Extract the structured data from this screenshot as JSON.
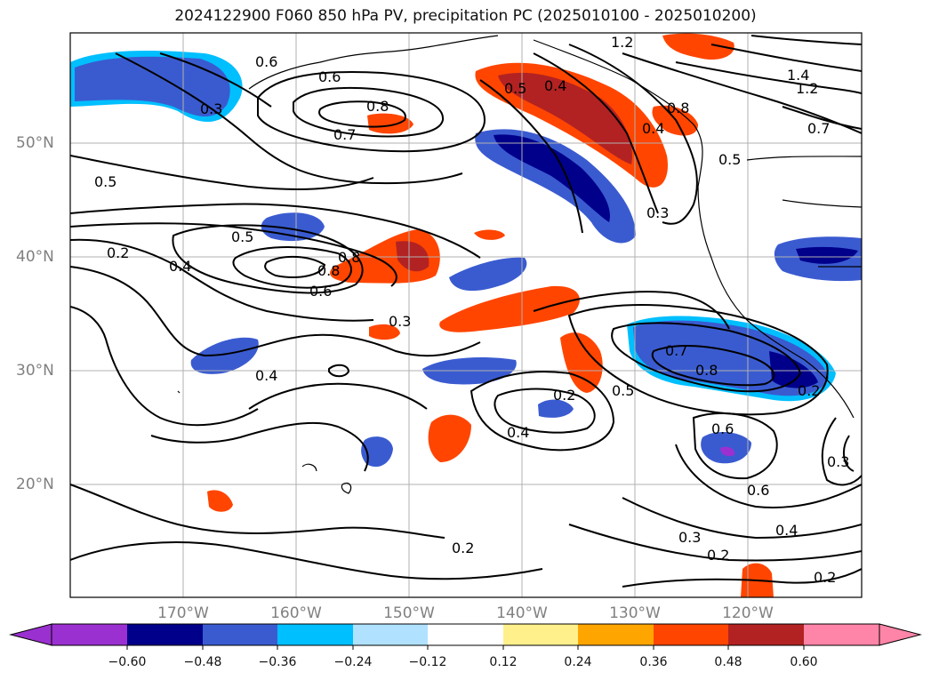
{
  "title": "2024122900 F060 850 hPa PV, precipitation PC (2025010100 - 2025010200)",
  "map": {
    "lat_labels": [
      "50°N",
      "40°N",
      "30°N",
      "20°N"
    ],
    "lon_labels": [
      "170°W",
      "160°W",
      "150°W",
      "140°W",
      "130°W",
      "120°W"
    ],
    "contour_labels": [
      "0.6",
      "0.6",
      "0.3",
      "0.8",
      "0.7",
      "0.5",
      "0.4",
      "1.2",
      "1.4",
      "1.2",
      "0.7",
      "0.8",
      "0.4",
      "0.5",
      "0.3",
      "0.5",
      "0.5",
      "0.2",
      "0.4",
      "0.8",
      "0.8",
      "0.6",
      "0.3",
      "0.4",
      "0.2",
      "0.5",
      "0.4",
      "0.7",
      "0.8",
      "0.2",
      "0.6",
      "0.6",
      "0.3",
      "0.3",
      "0.2",
      "0.2",
      "0.4",
      "0.2"
    ]
  },
  "colorbar": {
    "ticks": [
      "−0.60",
      "−0.48",
      "−0.36",
      "−0.24",
      "−0.12",
      "0.12",
      "0.24",
      "0.36",
      "0.48",
      "0.60"
    ],
    "colors": [
      "#9b30d0",
      "#00008b",
      "#3a5bd0",
      "#00bfff",
      "#b0e2ff",
      "#ffffff",
      "#fff08c",
      "#ffa500",
      "#ff4500",
      "#b22222",
      "#ff85a8"
    ]
  }
}
